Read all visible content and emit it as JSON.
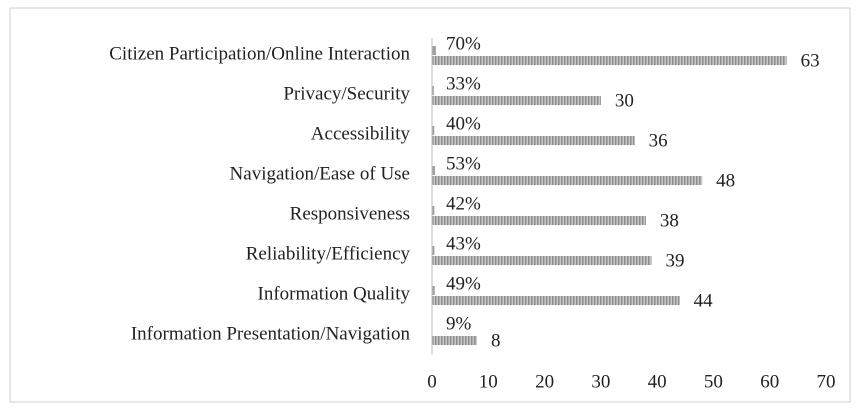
{
  "chart_data": {
    "type": "bar",
    "orientation": "horizontal",
    "categories": [
      "Citizen Participation/Online Interaction",
      "Privacy/Security",
      "Accessibility",
      "Navigation/Ease of Use",
      "Responsiveness",
      "Reliability/Efficiency",
      "Information Quality",
      "Information Presentation/Navigation"
    ],
    "series": [
      {
        "color": "#a0a0a0",
        "values": [
          0.7,
          0.33,
          0.4,
          0.53,
          0.42,
          0.43,
          0.49,
          0.09
        ],
        "value_labels": [
          "70%",
          "33%",
          "40%",
          "53%",
          "42%",
          "43%",
          "49%",
          "9%"
        ]
      },
      {
        "color": "#a0a0a0",
        "values": [
          63,
          30,
          36,
          48,
          38,
          39,
          44,
          8
        ]
      }
    ],
    "xlim": [
      0,
      70
    ],
    "xticks": [
      0,
      10,
      20,
      30,
      40,
      50,
      60,
      70
    ],
    "grid": false
  }
}
